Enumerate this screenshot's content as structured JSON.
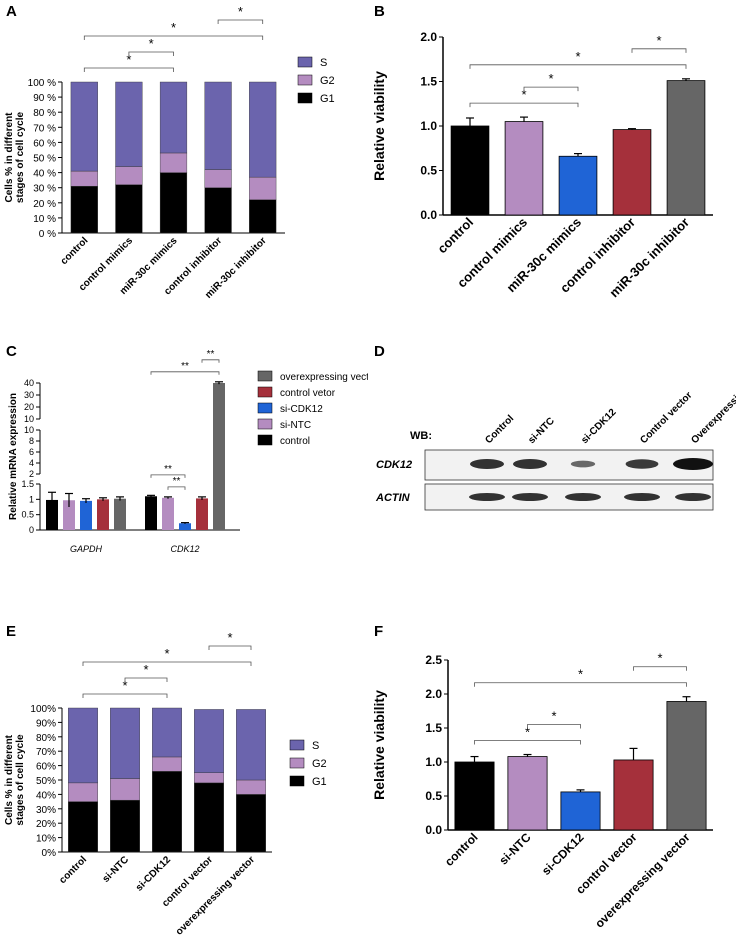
{
  "chart_data": [
    {
      "panel": "A",
      "type": "stacked_bar",
      "y_label": "Cells % in different stages of cell cycle",
      "categories": [
        "control",
        "control mimics",
        "miR-30c mimics",
        "control inhibitor",
        "miR-30c inhibitor"
      ],
      "series": [
        {
          "name": "G1",
          "color": "#000000",
          "values": [
            31,
            32,
            40,
            30,
            22
          ]
        },
        {
          "name": "G2",
          "color": "#b48cc0",
          "values": [
            10,
            12,
            13,
            12,
            15
          ]
        },
        {
          "name": "S",
          "color": "#6b64ad",
          "values": [
            59,
            56,
            47,
            58,
            63
          ]
        }
      ],
      "ylim": [
        0,
        100
      ],
      "yticks": [
        {
          "value": 0,
          "label": "0 %"
        },
        {
          "value": 10,
          "label": "10 %"
        },
        {
          "value": 20,
          "label": "20 %"
        },
        {
          "value": 30,
          "label": "30 %"
        },
        {
          "value": 40,
          "label": "40 %"
        },
        {
          "value": 50,
          "label": "50 %"
        },
        {
          "value": 60,
          "label": "60 %"
        },
        {
          "value": 70,
          "label": "70 %"
        },
        {
          "value": 80,
          "label": "80 %"
        },
        {
          "value": 90,
          "label": "90 %"
        },
        {
          "value": 100,
          "label": "100 %"
        }
      ],
      "significance": [
        {
          "text": "*",
          "between": [
            "control",
            "miR-30c mimics"
          ]
        },
        {
          "text": "*",
          "between": [
            "control mimics",
            "miR-30c mimics"
          ]
        },
        {
          "text": "*",
          "between": [
            "control",
            "miR-30c inhibitor"
          ]
        },
        {
          "text": "*",
          "between": [
            "control inhibitor",
            "miR-30c inhibitor"
          ]
        }
      ]
    },
    {
      "panel": "B",
      "type": "bar",
      "y_label": "Relative viability",
      "categories": [
        "control",
        "control mimics",
        "miR-30c mimics",
        "control inhibitor",
        "miR-30c inhibitor"
      ],
      "values": [
        1.0,
        1.05,
        0.66,
        0.96,
        1.51
      ],
      "errors": [
        0.09,
        0.05,
        0.03,
        0.01,
        0.02
      ],
      "colors": [
        "#000000",
        "#b48cc0",
        "#1f64d6",
        "#a5303b",
        "#666666"
      ],
      "ylim": [
        0,
        2
      ],
      "yticks": [
        {
          "value": 0,
          "label": "0.0"
        },
        0.5,
        {
          "value": 1,
          "label": "1.0"
        },
        1.5,
        {
          "value": 2,
          "label": "2.0"
        }
      ],
      "significance": [
        {
          "text": "*",
          "between": [
            "control",
            "miR-30c mimics"
          ]
        },
        {
          "text": "*",
          "between": [
            "control mimics",
            "miR-30c mimics"
          ]
        },
        {
          "text": "*",
          "between": [
            "control",
            "miR-30c inhibitor"
          ]
        },
        {
          "text": "*",
          "between": [
            "control inhibitor",
            "miR-30c inhibitor"
          ]
        }
      ]
    },
    {
      "panel": "C",
      "type": "grouped_bar",
      "y_label": "Relative mRNA expression",
      "categories": [
        "GAPDH",
        "CDK12"
      ],
      "series": [
        {
          "name": "control",
          "color": "#000000",
          "values": [
            0.98,
            1.1
          ],
          "errors": [
            0.25,
            0.03
          ]
        },
        {
          "name": "si-NTC",
          "color": "#b48cc0",
          "values": [
            0.97,
            1.05
          ],
          "errors": [
            0.22,
            0.03
          ]
        },
        {
          "name": "si-CDK12",
          "color": "#1f64d6",
          "values": [
            0.95,
            0.22
          ],
          "errors": [
            0.07,
            0.02
          ]
        },
        {
          "name": "control vetor",
          "color": "#a5303b",
          "values": [
            1.0,
            1.03
          ],
          "errors": [
            0.05,
            0.05
          ]
        },
        {
          "name": "overexpressing vector",
          "color": "#666666",
          "values": [
            1.02,
            40
          ],
          "errors": [
            0.06,
            1
          ]
        }
      ],
      "y_segments": [
        {
          "ylim": [
            0,
            1.5
          ],
          "yticks": [
            0,
            0.5,
            1,
            1.5
          ]
        },
        {
          "ylim": [
            2,
            10
          ],
          "yticks": [
            2,
            4,
            6,
            8,
            10
          ]
        },
        {
          "ylim": [
            10,
            40
          ],
          "yticks": [
            10,
            20,
            30,
            40
          ]
        }
      ],
      "significance": [
        {
          "text": "**",
          "group": "CDK12",
          "between": [
            "si-NTC",
            "si-CDK12"
          ]
        },
        {
          "text": "**",
          "group": "CDK12",
          "between": [
            "control",
            "si-CDK12"
          ]
        },
        {
          "text": "**",
          "group": "CDK12",
          "between": [
            "control",
            "overexpressing vector"
          ]
        },
        {
          "text": "**",
          "group": "CDK12",
          "between": [
            "control vetor",
            "overexpressing vector"
          ]
        }
      ]
    },
    {
      "panel": "E",
      "type": "stacked_bar",
      "y_label": "Cells % in different stages of cell cycle",
      "categories": [
        "control",
        "si-NTC",
        "si-CDK12",
        "control vector",
        "overexpressing vector"
      ],
      "series": [
        {
          "name": "G1",
          "color": "#000000",
          "values": [
            35,
            36,
            56,
            48,
            40
          ]
        },
        {
          "name": "G2",
          "color": "#b48cc0",
          "values": [
            13,
            15,
            10,
            7,
            10
          ]
        },
        {
          "name": "S",
          "color": "#6b64ad",
          "values": [
            52,
            49,
            34,
            44,
            49
          ]
        }
      ],
      "ylim": [
        0,
        100
      ],
      "yticks": [
        {
          "value": 0,
          "label": "0%"
        },
        {
          "value": 10,
          "label": "10%"
        },
        {
          "value": 20,
          "label": "20%"
        },
        {
          "value": 30,
          "label": "30%"
        },
        {
          "value": 40,
          "label": "40%"
        },
        {
          "value": 50,
          "label": "50%"
        },
        {
          "value": 60,
          "label": "60%"
        },
        {
          "value": 70,
          "label": "70%"
        },
        {
          "value": 80,
          "label": "80%"
        },
        {
          "value": 90,
          "label": "90%"
        },
        {
          "value": 100,
          "label": "100%"
        }
      ],
      "significance": [
        {
          "text": "*",
          "between": [
            "control",
            "si-CDK12"
          ]
        },
        {
          "text": "*",
          "between": [
            "si-NTC",
            "si-CDK12"
          ]
        },
        {
          "text": "*",
          "between": [
            "control",
            "overexpressing vector"
          ]
        },
        {
          "text": "*",
          "between": [
            "control vector",
            "overexpressing vector"
          ]
        }
      ]
    },
    {
      "panel": "F",
      "type": "bar",
      "y_label": "Relative viability",
      "categories": [
        "control",
        "si-NTC",
        "si-CDK12",
        "control vector",
        "overexpressing vector"
      ],
      "values": [
        1.0,
        1.08,
        0.56,
        1.03,
        1.89
      ],
      "errors": [
        0.08,
        0.03,
        0.03,
        0.17,
        0.07
      ],
      "colors": [
        "#000000",
        "#b48cc0",
        "#1f64d6",
        "#a5303b",
        "#666666"
      ],
      "ylim": [
        0,
        2.5
      ],
      "yticks": [
        {
          "value": 0,
          "label": "0.0"
        },
        0.5,
        {
          "value": 1,
          "label": "1.0"
        },
        1.5,
        {
          "value": 2,
          "label": "2.0"
        },
        2.5
      ],
      "significance": [
        {
          "text": "*",
          "between": [
            "control",
            "si-CDK12"
          ]
        },
        {
          "text": "*",
          "between": [
            "si-NTC",
            "si-CDK12"
          ]
        },
        {
          "text": "*",
          "between": [
            "control",
            "overexpressing vector"
          ]
        },
        {
          "text": "*",
          "between": [
            "control vector",
            "overexpressing vector"
          ]
        }
      ]
    }
  ],
  "blot": {
    "panel": "D",
    "label": "WB:",
    "columns": [
      "Control",
      "si-NTC",
      "si-CDK12",
      "Control vector",
      "Overexpressing vector"
    ],
    "rows": [
      "CDK12",
      "ACTIN"
    ]
  }
}
